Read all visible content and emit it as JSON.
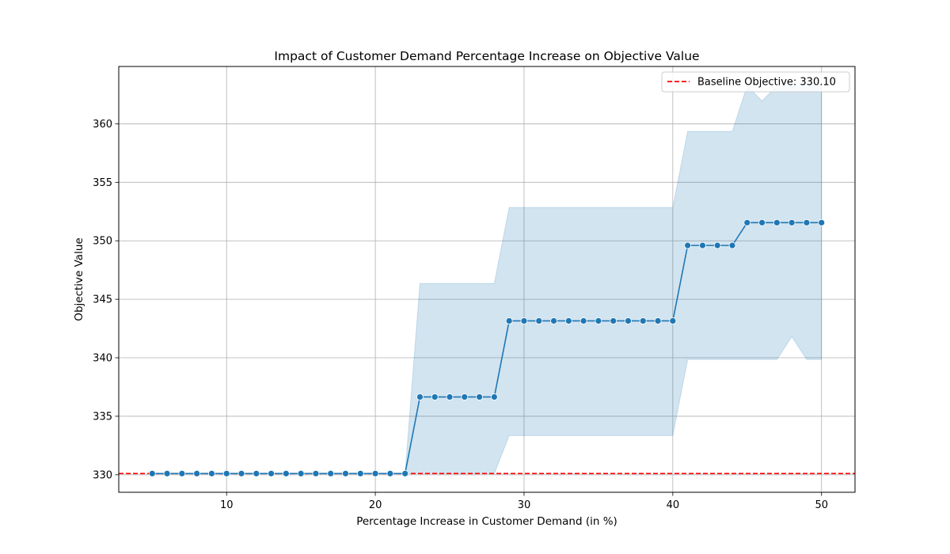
{
  "chart_data": {
    "type": "line",
    "title": "Impact of Customer Demand Percentage Increase on Objective Value",
    "xlabel": "Percentage Increase in Customer Demand (in %)",
    "ylabel": "Objective Value",
    "xlim": [
      2.75,
      52.25
    ],
    "ylim": [
      328.5,
      364.9
    ],
    "xticks": [
      10,
      20,
      30,
      40,
      50
    ],
    "yticks": [
      330,
      335,
      340,
      345,
      350,
      355,
      360
    ],
    "grid": true,
    "legend_position": "top-right",
    "baseline": {
      "label": "Baseline Objective: 330.10",
      "value": 330.1,
      "color": "#ff0000",
      "style": "dashed"
    },
    "series": [
      {
        "color": "#1f77b4",
        "band_color": "#1f77b4",
        "x": [
          5,
          6,
          7,
          8,
          9,
          10,
          11,
          12,
          13,
          14,
          15,
          16,
          17,
          18,
          19,
          20,
          21,
          22,
          23,
          24,
          25,
          26,
          27,
          28,
          29,
          30,
          31,
          32,
          33,
          34,
          35,
          36,
          37,
          38,
          39,
          40,
          41,
          42,
          43,
          44,
          45,
          46,
          47,
          48,
          49,
          50
        ],
        "y": [
          330.1,
          330.1,
          330.1,
          330.1,
          330.1,
          330.1,
          330.1,
          330.1,
          330.1,
          330.1,
          330.1,
          330.1,
          330.1,
          330.1,
          330.1,
          330.1,
          330.1,
          330.1,
          336.65,
          336.65,
          336.65,
          336.65,
          336.65,
          336.65,
          343.15,
          343.15,
          343.15,
          343.15,
          343.15,
          343.15,
          343.15,
          343.15,
          343.15,
          343.15,
          343.15,
          343.15,
          349.6,
          349.6,
          349.6,
          349.6,
          351.55,
          351.55,
          351.55,
          351.55,
          351.55,
          351.55
        ],
        "lower": [
          330.1,
          330.1,
          330.1,
          330.1,
          330.1,
          330.1,
          330.1,
          330.1,
          330.1,
          330.1,
          330.1,
          330.1,
          330.1,
          330.1,
          330.1,
          330.1,
          330.1,
          330.1,
          330.1,
          330.1,
          330.1,
          330.1,
          330.1,
          330.1,
          333.35,
          333.35,
          333.35,
          333.35,
          333.35,
          333.35,
          333.35,
          333.35,
          333.35,
          333.35,
          333.35,
          333.35,
          339.85,
          339.85,
          339.85,
          339.85,
          339.85,
          339.85,
          339.85,
          341.8,
          339.85,
          339.85
        ],
        "upper": [
          330.1,
          330.1,
          330.1,
          330.1,
          330.1,
          330.1,
          330.1,
          330.1,
          330.1,
          330.1,
          330.1,
          330.1,
          330.1,
          330.1,
          330.1,
          330.1,
          330.1,
          330.1,
          346.35,
          346.35,
          346.35,
          346.35,
          346.35,
          346.35,
          352.85,
          352.85,
          352.85,
          352.85,
          352.85,
          352.85,
          352.85,
          352.85,
          352.85,
          352.85,
          352.85,
          352.85,
          359.35,
          359.35,
          359.35,
          359.35,
          363.25,
          361.95,
          363.25,
          363.25,
          363.25,
          363.25
        ]
      }
    ]
  }
}
